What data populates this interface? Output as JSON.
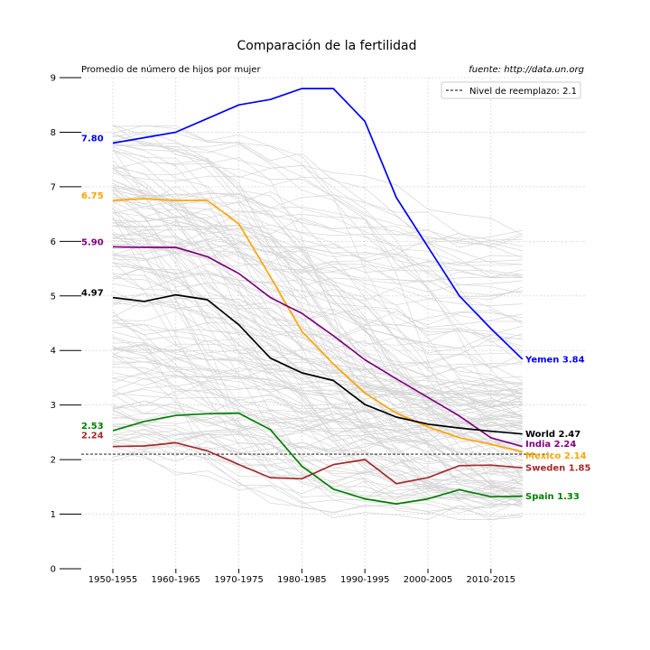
{
  "chart_data": {
    "type": "line",
    "title": "Comparación de la fertilidad",
    "subtitle_left": "Promedio de número de hijos por mujer",
    "subtitle_right": "fuente: http://data.un.org",
    "x": [
      "1950-1955",
      "1955-1960",
      "1960-1965",
      "1965-1970",
      "1970-1975",
      "1975-1980",
      "1980-1985",
      "1985-1990",
      "1990-1995",
      "1995-2000",
      "2000-2005",
      "2005-2010",
      "2010-2015",
      "2015-2020"
    ],
    "x_tick_labels": [
      "1950-1955",
      "1960-1965",
      "1970-1975",
      "1980-1985",
      "1990-1995",
      "2000-2005",
      "2010-2015"
    ],
    "y_ticks": [
      0,
      1,
      2,
      3,
      4,
      5,
      6,
      7,
      8,
      9
    ],
    "ylim": [
      0,
      9
    ],
    "grid": true,
    "reference_line": {
      "value": 2.1,
      "label": "Nivel de reemplazo: 2.1",
      "style": "dashed"
    },
    "legend_position": "top-right",
    "series": [
      {
        "name": "Yemen",
        "color": "#0000ff",
        "start_label": "7.80",
        "end_label": "Yemen 3.84",
        "values": [
          7.8,
          7.9,
          8.0,
          8.25,
          8.5,
          8.6,
          8.8,
          8.8,
          8.2,
          6.8,
          5.9,
          5.0,
          4.4,
          3.84
        ]
      },
      {
        "name": "Mexico",
        "color": "#ffa500",
        "start_label": "6.75",
        "end_label": "Mexico 2.14",
        "values": [
          6.75,
          6.78,
          6.75,
          6.75,
          6.32,
          5.35,
          4.35,
          3.75,
          3.22,
          2.85,
          2.6,
          2.4,
          2.28,
          2.14
        ]
      },
      {
        "name": "India",
        "color": "#800080",
        "start_label": "5.90",
        "end_label": "India 2.24",
        "values": [
          5.9,
          5.89,
          5.89,
          5.72,
          5.41,
          4.97,
          4.68,
          4.27,
          3.83,
          3.48,
          3.14,
          2.8,
          2.4,
          2.24
        ]
      },
      {
        "name": "World",
        "color": "#000000",
        "start_label": "4.97",
        "end_label": "World 2.47",
        "values": [
          4.97,
          4.9,
          5.02,
          4.93,
          4.47,
          3.86,
          3.59,
          3.45,
          3.01,
          2.78,
          2.65,
          2.58,
          2.52,
          2.47
        ]
      },
      {
        "name": "Sweden",
        "color": "#a52a2a",
        "start_label": "2.24",
        "end_label": "Sweden 1.85",
        "values": [
          2.24,
          2.25,
          2.31,
          2.16,
          1.91,
          1.67,
          1.65,
          1.91,
          2.0,
          1.56,
          1.67,
          1.89,
          1.9,
          1.85
        ]
      },
      {
        "name": "Spain",
        "color": "#008000",
        "start_label": "2.53",
        "end_label": "Spain 1.33",
        "values": [
          2.53,
          2.7,
          2.81,
          2.84,
          2.85,
          2.55,
          1.88,
          1.46,
          1.28,
          1.19,
          1.28,
          1.45,
          1.32,
          1.33
        ]
      }
    ],
    "background_series_count": 160
  }
}
